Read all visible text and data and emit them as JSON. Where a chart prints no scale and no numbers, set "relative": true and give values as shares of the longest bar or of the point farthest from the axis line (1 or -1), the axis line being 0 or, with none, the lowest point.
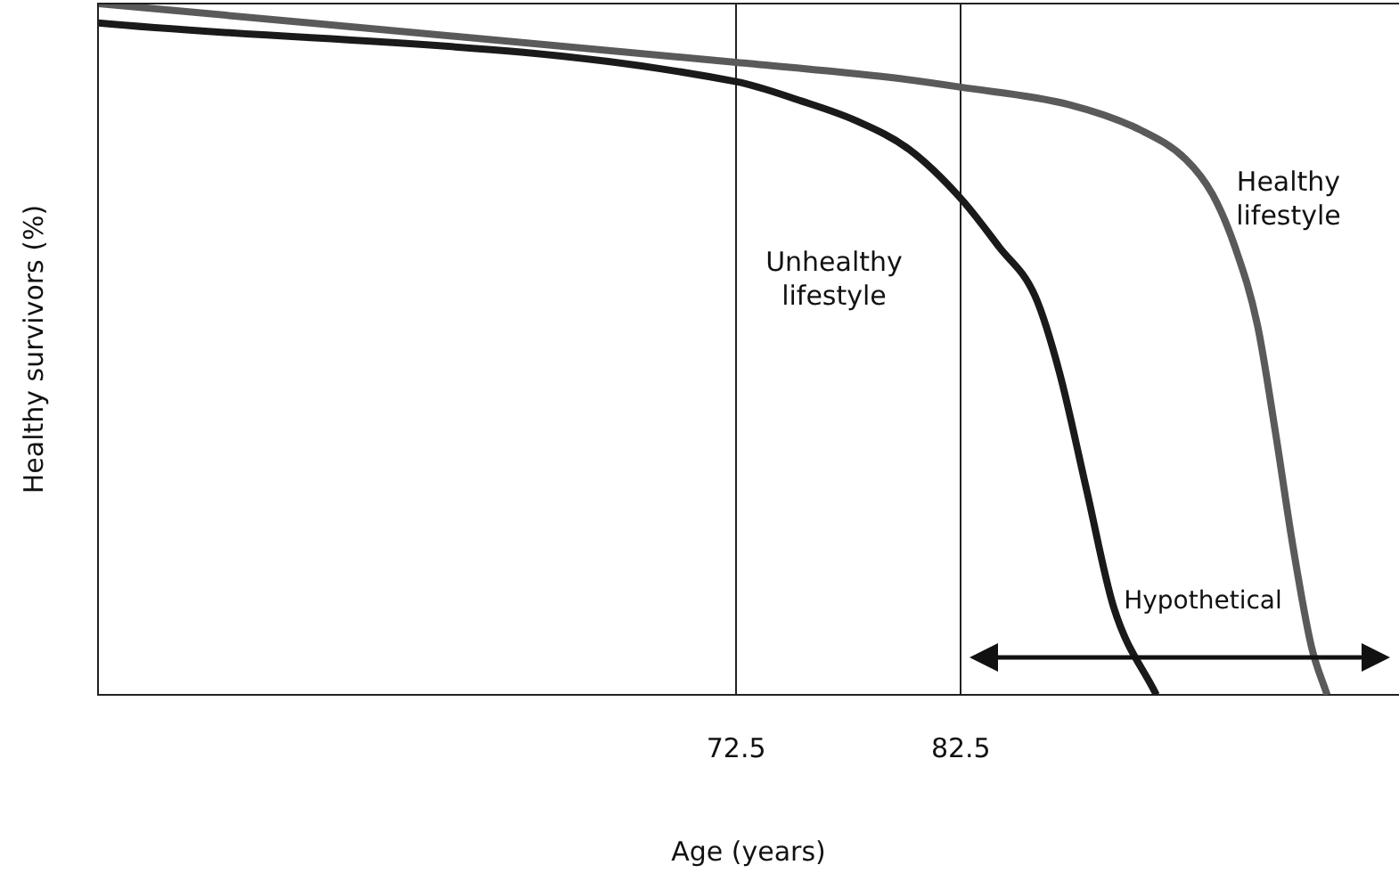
{
  "chart_data": {
    "type": "line",
    "xlabel": "Age (years)",
    "ylabel": "Healthy survivors (%)",
    "relative": true,
    "xlim": [
      44.1,
      102
    ],
    "xticks": [
      72.5,
      82.5
    ],
    "grid": "x",
    "legend": false,
    "marker": "none",
    "line_style": "solid",
    "annotations": [
      "Hypothetical"
    ],
    "series": [
      {
        "name": "Healthy lifestyle",
        "color": "#5a5a5a",
        "x": [
          44.1,
          72.5,
          79.4,
          82.5,
          87.3,
          90.5,
          92.5,
          93.7,
          94.7,
          95.7,
          96.5,
          97.3,
          98.1,
          98.8
        ],
        "values": [
          1,
          0.915,
          0.893,
          0.879,
          0.854,
          0.817,
          0.775,
          0.724,
          0.648,
          0.535,
          0.38,
          0.211,
          0.07,
          0
        ]
      },
      {
        "name": "Unhealthy lifestyle",
        "color": "#1a1a1a",
        "x": [
          44.1,
          72.5,
          75.4,
          77.8,
          80.2,
          82.5,
          84.2,
          85.8,
          86.9,
          88.1,
          89.3,
          91.2
        ],
        "values": [
          0.972,
          0.887,
          0.859,
          0.831,
          0.789,
          0.718,
          0.648,
          0.577,
          0.465,
          0.296,
          0.127,
          0
        ]
      }
    ]
  }
}
